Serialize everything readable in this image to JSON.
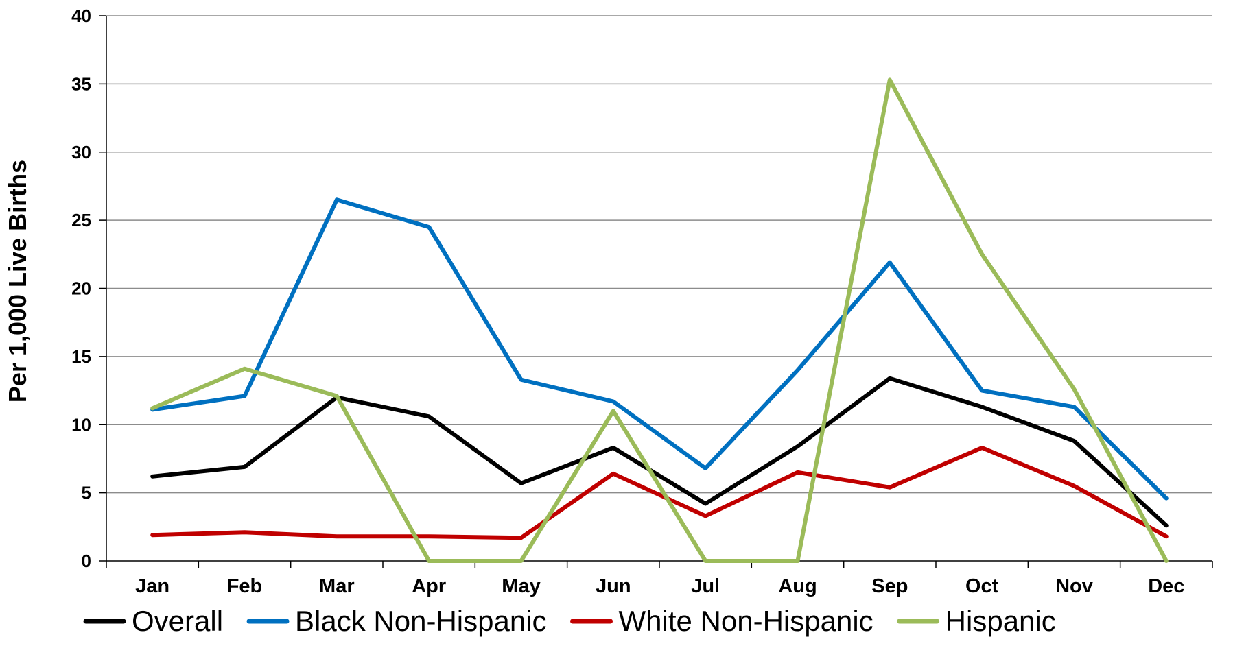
{
  "chart_data": {
    "type": "line",
    "title": "",
    "xlabel": "",
    "ylabel": "Per 1,000 Live Births",
    "categories": [
      "Jan",
      "Feb",
      "Mar",
      "Apr",
      "May",
      "Jun",
      "Jul",
      "Aug",
      "Sep",
      "Oct",
      "Nov",
      "Dec"
    ],
    "ylim": [
      0,
      40
    ],
    "yticks": [
      "0",
      "5",
      "10",
      "15",
      "20",
      "25",
      "30",
      "35",
      "40"
    ],
    "grid": "horizontal",
    "legend_position": "bottom",
    "series": [
      {
        "name": "Overall",
        "color": "#000000",
        "values": [
          6.2,
          6.9,
          12.0,
          10.6,
          5.7,
          8.3,
          4.2,
          8.4,
          13.4,
          11.3,
          8.8,
          2.6
        ]
      },
      {
        "name": "Black Non-Hispanic",
        "color": "#0070C0",
        "values": [
          11.1,
          12.1,
          26.5,
          24.5,
          13.3,
          11.7,
          6.8,
          14.0,
          21.9,
          12.5,
          11.3,
          4.6
        ]
      },
      {
        "name": "White Non-Hispanic",
        "color": "#C00000",
        "values": [
          1.9,
          2.1,
          1.8,
          1.8,
          1.7,
          6.4,
          3.3,
          6.5,
          5.4,
          8.3,
          5.5,
          1.8
        ]
      },
      {
        "name": "Hispanic",
        "color": "#9BBB59",
        "values": [
          11.2,
          14.1,
          12.1,
          0,
          0,
          11.0,
          0,
          0,
          35.3,
          22.5,
          12.6,
          0
        ]
      }
    ]
  }
}
